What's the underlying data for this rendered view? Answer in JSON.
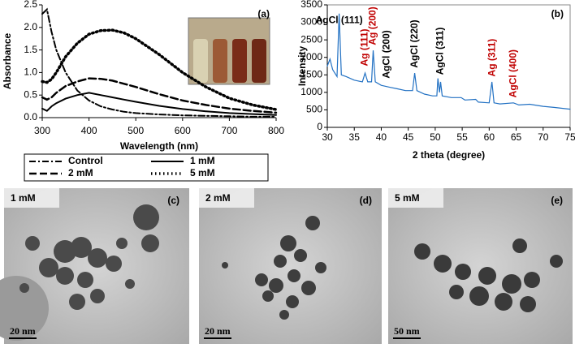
{
  "chart_data": [
    {
      "type": "line",
      "panel_label": "(a)",
      "x_label": "Wavelength (nm)",
      "y_label": "Absorbance",
      "x": [
        300,
        310,
        320,
        330,
        350,
        375,
        400,
        425,
        450,
        475,
        500,
        550,
        600,
        650,
        700,
        750,
        800
      ],
      "series": [
        {
          "name": "Control",
          "color": "#000000",
          "dash": "dash-dot",
          "values": [
            2.3,
            2.4,
            1.9,
            1.5,
            1.0,
            0.6,
            0.38,
            0.25,
            0.18,
            0.13,
            0.1,
            0.07,
            0.05,
            0.04,
            0.03,
            0.02,
            0.02
          ]
        },
        {
          "name": "1 mM",
          "color": "#000000",
          "dash": "solid",
          "values": [
            0.2,
            0.15,
            0.25,
            0.32,
            0.42,
            0.5,
            0.55,
            0.5,
            0.45,
            0.4,
            0.35,
            0.26,
            0.19,
            0.14,
            0.1,
            0.08,
            0.06
          ]
        },
        {
          "name": "2 mM",
          "color": "#000000",
          "dash": "dashed",
          "values": [
            0.45,
            0.4,
            0.45,
            0.55,
            0.7,
            0.8,
            0.87,
            0.86,
            0.82,
            0.75,
            0.68,
            0.52,
            0.38,
            0.28,
            0.2,
            0.15,
            0.11
          ]
        },
        {
          "name": "5 mM",
          "color": "#000000",
          "dash": "dotted",
          "values": [
            0.8,
            0.78,
            0.85,
            1.0,
            1.35,
            1.65,
            1.85,
            1.93,
            1.94,
            1.88,
            1.75,
            1.4,
            1.0,
            0.68,
            0.43,
            0.28,
            0.18
          ]
        }
      ],
      "xlim": [
        300,
        800
      ],
      "xticks": [
        300,
        400,
        500,
        600,
        700,
        800
      ],
      "ylim": [
        0,
        2.5
      ],
      "yticks": [
        {
          "value": 0,
          "label": "0.0"
        },
        0.5,
        {
          "value": 1,
          "label": "1.0"
        },
        1.5,
        {
          "value": 2,
          "label": "2.0"
        },
        2.5
      ],
      "legend": "bottom"
    },
    {
      "type": "line",
      "panel_label": "(b)",
      "x_label": "2 theta (degree)",
      "y_label": "Intensity",
      "color": "#2271c3",
      "x": [
        30,
        30.5,
        31,
        31.8,
        32.2,
        32.6,
        33.5,
        35,
        36.5,
        37,
        37.5,
        38.2,
        38.5,
        38.9,
        40,
        41.5,
        43,
        44.5,
        45.8,
        46.2,
        46.6,
        48,
        49.5,
        50.3,
        50.5,
        50.8,
        51,
        51.3,
        53,
        54.8,
        55.5,
        57.5,
        58,
        60,
        60.5,
        60.9,
        62,
        64.5,
        65.5,
        67.5,
        70,
        72,
        75
      ],
      "values": [
        1750,
        1950,
        1650,
        1450,
        3250,
        1500,
        1450,
        1350,
        1300,
        1550,
        1300,
        1300,
        2200,
        1300,
        1200,
        1150,
        1100,
        1050,
        1050,
        1550,
        1050,
        950,
        900,
        900,
        1400,
        1000,
        1300,
        900,
        850,
        850,
        780,
        800,
        720,
        700,
        1300,
        700,
        670,
        700,
        640,
        660,
        600,
        570,
        520
      ],
      "xlim": [
        30,
        75
      ],
      "xticks": [
        30,
        35,
        40,
        45,
        50,
        55,
        60,
        65,
        70,
        75
      ],
      "ylim": [
        0,
        3500
      ],
      "yticks": [
        0,
        500,
        1000,
        1500,
        2000,
        2500,
        3000,
        3500
      ],
      "annotations": [
        {
          "text": "AgCl (111)",
          "x": 32.2,
          "y": 3050,
          "color": "#000000",
          "vertical": false
        },
        {
          "text": "Ag (111)",
          "x": 37,
          "y": 1750,
          "color": "#c00000",
          "vertical": true
        },
        {
          "text": "Ag (200)",
          "x": 38.5,
          "y": 2350,
          "color": "#c00000",
          "vertical": true
        },
        {
          "text": "AgCl (200)",
          "x": 41,
          "y": 1400,
          "color": "#000000",
          "vertical": true
        },
        {
          "text": "AgCl (220)",
          "x": 46.2,
          "y": 1700,
          "color": "#000000",
          "vertical": true
        },
        {
          "text": "AgCl (311)",
          "x": 51,
          "y": 1500,
          "color": "#000000",
          "vertical": true
        },
        {
          "text": "Ag (311)",
          "x": 60.6,
          "y": 1450,
          "color": "#c00000",
          "vertical": true
        },
        {
          "text": "AgCl (400)",
          "x": 64.5,
          "y": 850,
          "color": "#c00000",
          "vertical": true
        }
      ]
    }
  ],
  "images": [
    {
      "concentration": "1 mM",
      "panel_label": "(c)",
      "scale_bar": "20 nm"
    },
    {
      "concentration": "2 mM",
      "panel_label": "(d)",
      "scale_bar": "20 nm"
    },
    {
      "concentration": "5 mM",
      "panel_label": "(e)",
      "scale_bar": "50 nm"
    }
  ]
}
